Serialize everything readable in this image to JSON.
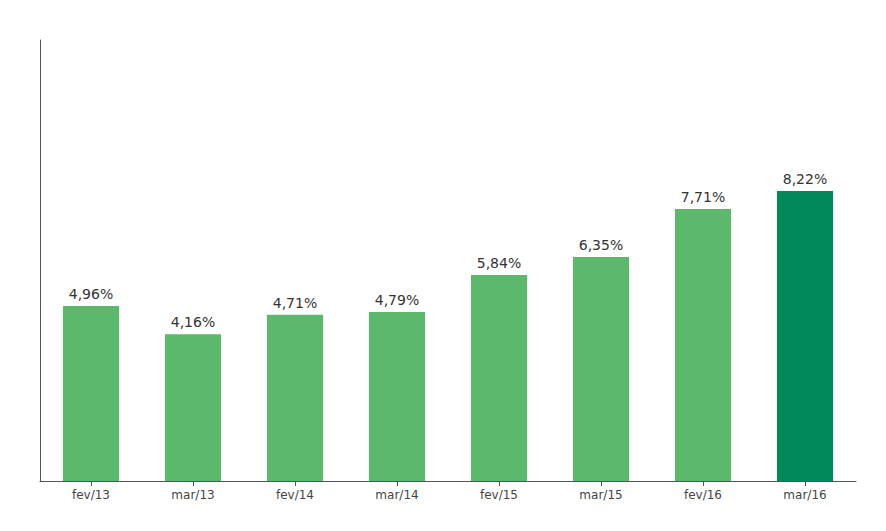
{
  "chart_data": {
    "type": "bar",
    "categories": [
      "fev/13",
      "mar/13",
      "fev/14",
      "mar/14",
      "fev/15",
      "mar/15",
      "fev/16",
      "mar/16"
    ],
    "values": [
      4.96,
      4.16,
      4.71,
      4.79,
      5.84,
      6.35,
      7.71,
      8.22
    ],
    "value_labels": [
      "4,96%",
      "4,16%",
      "4,71%",
      "4,79%",
      "5,84%",
      "6,35%",
      "7,71%",
      "8,22%"
    ],
    "colors": [
      "#5cb86a",
      "#5cb86a",
      "#5cb86a",
      "#5cb86a",
      "#5cb86a",
      "#5cb86a",
      "#5cb86a",
      "#00875a"
    ],
    "ylim": [
      0,
      12.5
    ],
    "data_labels": true,
    "tick_labels": "x",
    "grid": false
  }
}
